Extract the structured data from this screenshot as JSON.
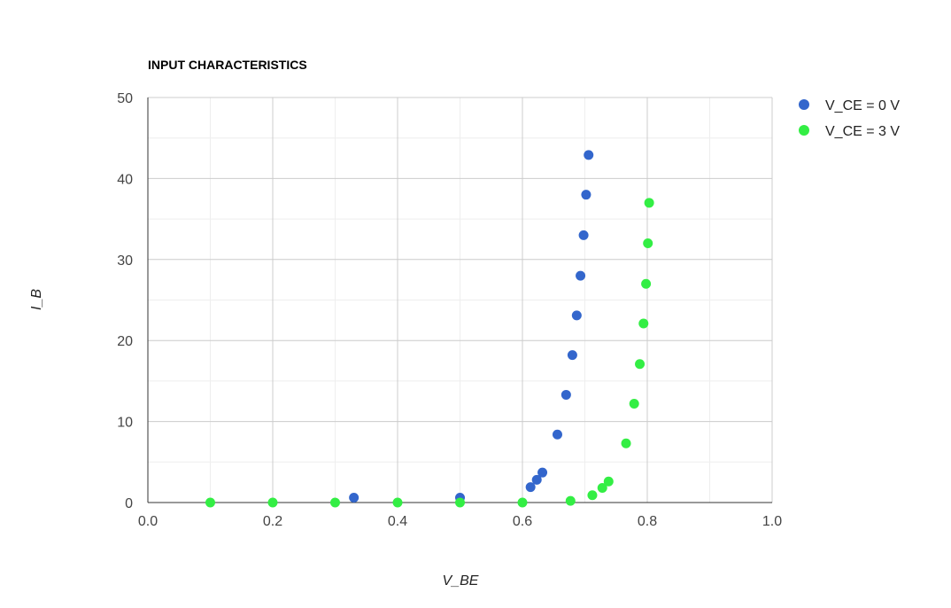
{
  "chart_data": {
    "type": "scatter",
    "title": "INPUT CHARACTERISTICS",
    "xlabel": "V_BE",
    "ylabel": "I_B",
    "xlim": [
      0,
      1
    ],
    "ylim": [
      0,
      50
    ],
    "x_ticks": [
      "0.0",
      "0.2",
      "0.4",
      "0.6",
      "0.8",
      "1.0"
    ],
    "y_ticks": [
      "0",
      "10",
      "20",
      "30",
      "40",
      "50"
    ],
    "grid": true,
    "legend": "right",
    "series": [
      {
        "name": "V_CE = 0 V",
        "color": "#3366cc",
        "points": [
          [
            0.33,
            0.6
          ],
          [
            0.5,
            0.6
          ],
          [
            0.613,
            1.9
          ],
          [
            0.623,
            2.8
          ],
          [
            0.632,
            3.7
          ],
          [
            0.656,
            8.4
          ],
          [
            0.67,
            13.3
          ],
          [
            0.68,
            18.2
          ],
          [
            0.687,
            23.1
          ],
          [
            0.693,
            28.0
          ],
          [
            0.698,
            33.0
          ],
          [
            0.702,
            38.0
          ],
          [
            0.706,
            42.9
          ]
        ]
      },
      {
        "name": "V_CE = 3 V",
        "color": "#33ee44",
        "points": [
          [
            0.1,
            0.0
          ],
          [
            0.2,
            0.0
          ],
          [
            0.3,
            0.0
          ],
          [
            0.4,
            0.0
          ],
          [
            0.5,
            0.0
          ],
          [
            0.6,
            0.0
          ],
          [
            0.677,
            0.2
          ],
          [
            0.712,
            0.9
          ],
          [
            0.728,
            1.8
          ],
          [
            0.738,
            2.6
          ],
          [
            0.766,
            7.3
          ],
          [
            0.779,
            12.2
          ],
          [
            0.788,
            17.1
          ],
          [
            0.794,
            22.1
          ],
          [
            0.798,
            27.0
          ],
          [
            0.801,
            32.0
          ],
          [
            0.803,
            37.0
          ]
        ]
      }
    ]
  }
}
